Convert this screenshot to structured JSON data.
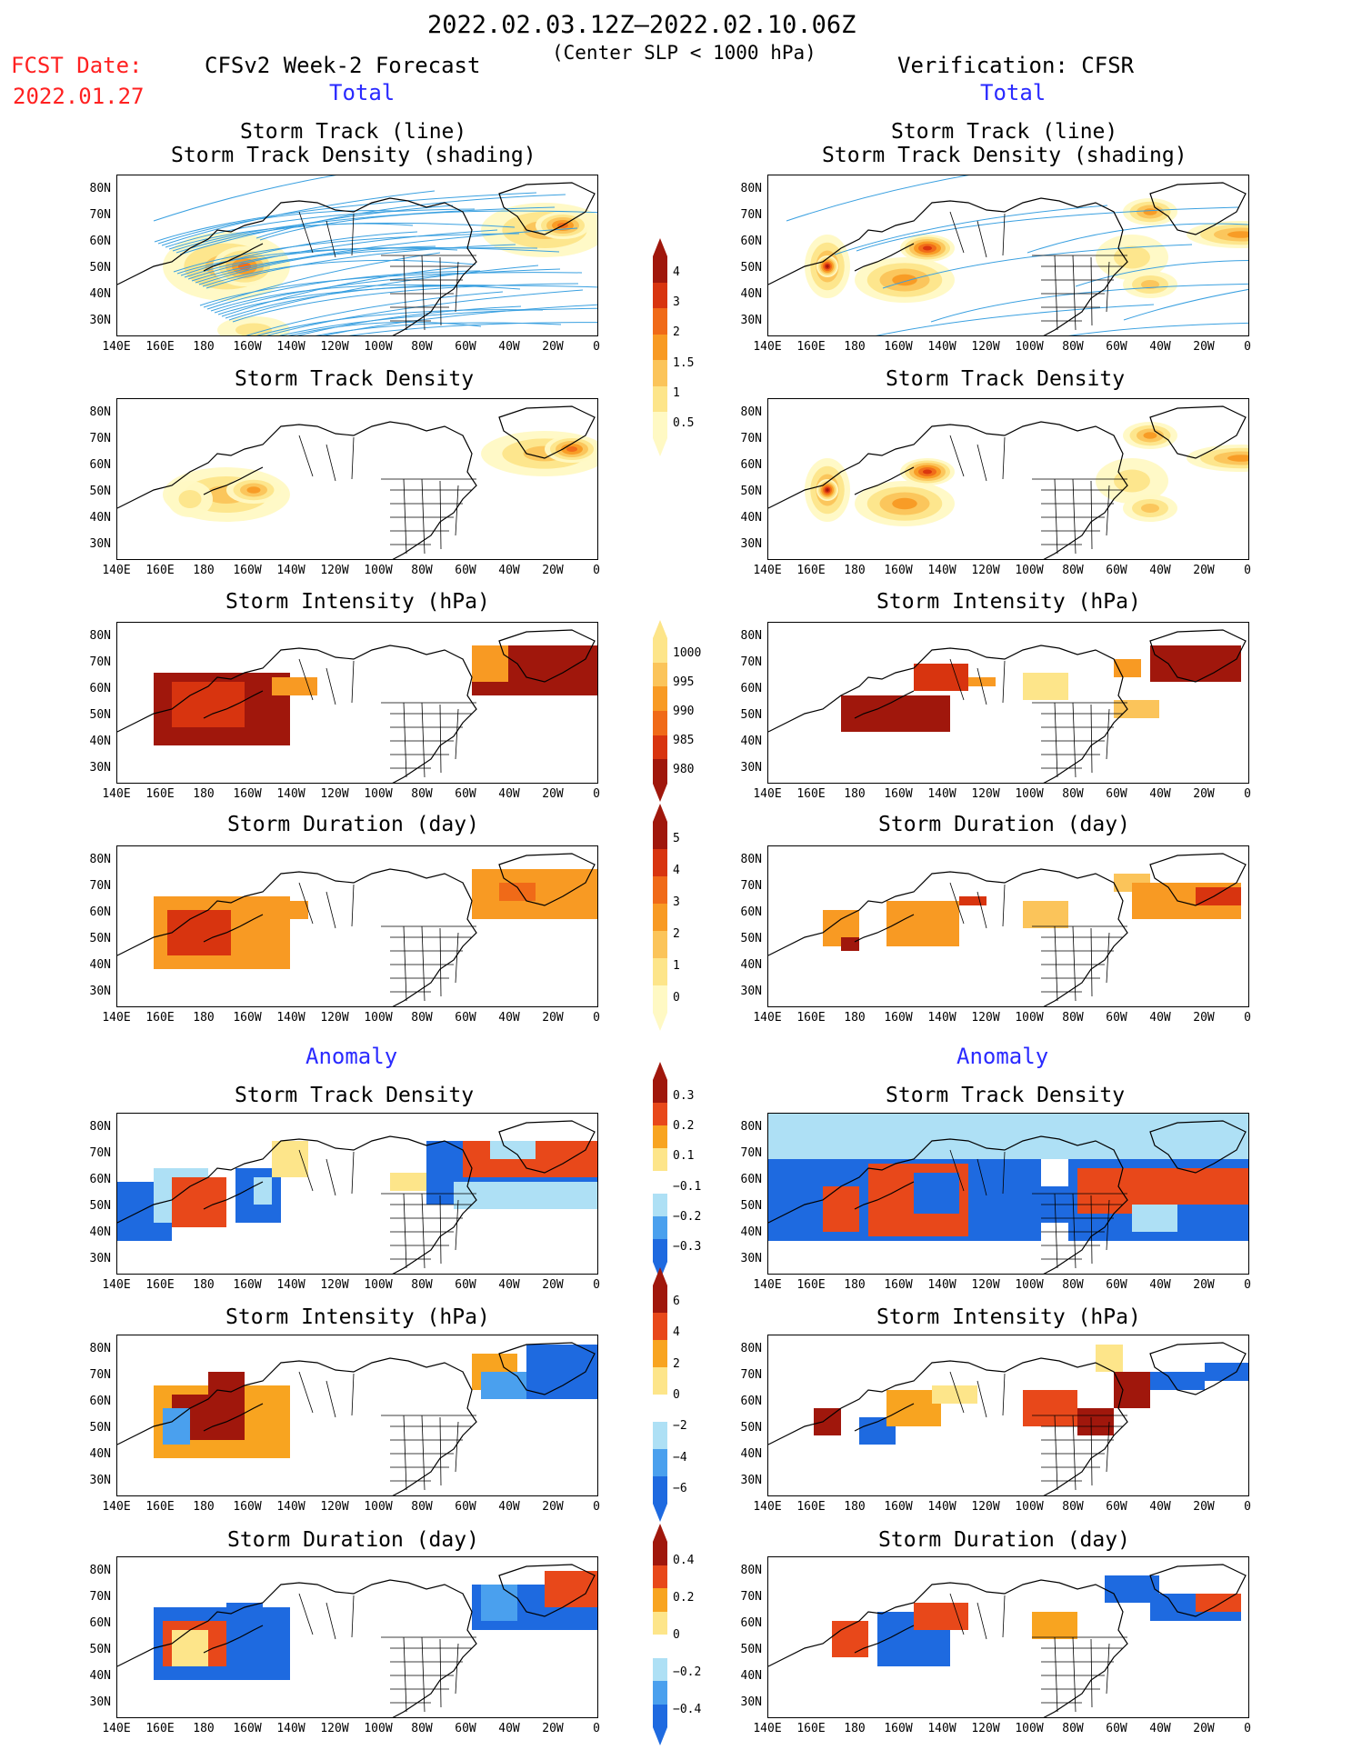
{
  "header": {
    "date_range": "2022.02.03.12Z–2022.02.10.06Z",
    "threshold": "(Center SLP < 1000 hPa)",
    "fcst_label": "FCST Date:",
    "fcst_date": "2022.01.27",
    "left_title": "CFSv2 Week-2 Forecast",
    "right_title": "Verification: CFSR",
    "total_label": "Total",
    "anomaly_label": "Anomaly"
  },
  "panels": {
    "track_title_1": "Storm Track (line)",
    "track_title_2": "Storm Track Density (shading)",
    "density": "Storm Track Density",
    "intensity": "Storm Intensity (hPa)",
    "duration": "Storm Duration (day)"
  },
  "axes": {
    "lat_labels": [
      "80N",
      "70N",
      "60N",
      "50N",
      "40N",
      "30N"
    ],
    "lon_labels": [
      "140E",
      "160E",
      "180",
      "160W",
      "140W",
      "120W",
      "100W",
      "80W",
      "60W",
      "40W",
      "20W",
      "0"
    ]
  },
  "colorbars": {
    "density_total": [
      "4",
      "3",
      "2",
      "1.5",
      "1",
      "0.5"
    ],
    "intensity_total": [
      "1000",
      "995",
      "990",
      "985",
      "980"
    ],
    "duration_total": [
      "5",
      "4",
      "3",
      "2",
      "1",
      "0"
    ],
    "density_anom": [
      "0.3",
      "0.2",
      "0.1",
      "−0.1",
      "−0.2",
      "−0.3"
    ],
    "intensity_anom": [
      "6",
      "4",
      "2",
      "0",
      "−2",
      "−4",
      "−6"
    ],
    "duration_anom": [
      "0.4",
      "0.2",
      "0",
      "−0.2",
      "−0.4"
    ]
  },
  "colors": {
    "total_scale": [
      "#fff9c4",
      "#fde58a",
      "#fbc45a",
      "#f89a23",
      "#f06a18",
      "#d8340f",
      "#a0170c"
    ],
    "anom_scale": [
      "#1e6ae0",
      "#4aa0ee",
      "#aee0f5",
      "#ffffff",
      "#fde58a",
      "#f8a420",
      "#e8481a",
      "#a0170c"
    ],
    "track_line": "#3aa0e0"
  }
}
